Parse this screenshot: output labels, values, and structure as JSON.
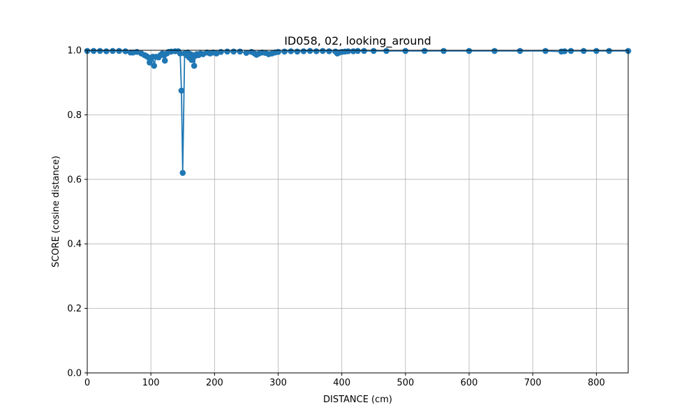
{
  "chart_data": {
    "type": "line",
    "title": "ID058, 02, looking_around",
    "xlabel": "DISTANCE (cm)",
    "ylabel": "SCORE (cosine distance)",
    "xlim": [
      0,
      850
    ],
    "ylim": [
      0,
      1.0
    ],
    "xticks": [
      0,
      100,
      200,
      300,
      400,
      500,
      600,
      700,
      800
    ],
    "yticks": [
      0.0,
      0.2,
      0.4,
      0.6,
      0.8,
      1.0
    ],
    "xtick_labels": [
      "0",
      "100",
      "200",
      "300",
      "400",
      "500",
      "600",
      "700",
      "800"
    ],
    "ytick_labels": [
      "0.0",
      "0.2",
      "0.4",
      "0.6",
      "0.8",
      "1.0"
    ],
    "grid": true,
    "marker": "circle",
    "color": "#1f77b4",
    "x": [
      0,
      10,
      20,
      30,
      40,
      50,
      60,
      68,
      72,
      78,
      85,
      90,
      93,
      96,
      98,
      100,
      103,
      105,
      108,
      112,
      115,
      118,
      120,
      122,
      125,
      128,
      132,
      138,
      143,
      146,
      148,
      150,
      153,
      156,
      158,
      160,
      162,
      164,
      166,
      168,
      170,
      172,
      175,
      178,
      182,
      188,
      193,
      198,
      203,
      210,
      220,
      230,
      240,
      250,
      258,
      263,
      266,
      270,
      275,
      280,
      285,
      290,
      295,
      300,
      310,
      320,
      330,
      340,
      350,
      360,
      370,
      380,
      390,
      393,
      396,
      400,
      405,
      410,
      418,
      425,
      435,
      450,
      470,
      500,
      530,
      560,
      600,
      640,
      680,
      720,
      745,
      750,
      760,
      780,
      800,
      820,
      850
    ],
    "y": [
      0.998,
      0.998,
      0.998,
      0.997,
      0.998,
      0.998,
      0.997,
      0.993,
      0.993,
      0.995,
      0.99,
      0.985,
      0.982,
      0.978,
      0.962,
      0.972,
      0.98,
      0.952,
      0.98,
      0.978,
      0.985,
      0.99,
      0.985,
      0.968,
      0.99,
      0.995,
      0.996,
      0.997,
      0.997,
      0.99,
      0.875,
      0.62,
      0.99,
      0.985,
      0.993,
      0.978,
      0.988,
      0.97,
      0.985,
      0.952,
      0.983,
      0.988,
      0.985,
      0.99,
      0.988,
      0.993,
      0.99,
      0.993,
      0.99,
      0.995,
      0.996,
      0.996,
      0.996,
      0.992,
      0.995,
      0.99,
      0.986,
      0.99,
      0.993,
      0.992,
      0.988,
      0.99,
      0.993,
      0.995,
      0.996,
      0.997,
      0.996,
      0.997,
      0.998,
      0.997,
      0.998,
      0.997,
      0.996,
      0.99,
      0.993,
      0.995,
      0.996,
      0.997,
      0.997,
      0.998,
      0.998,
      0.998,
      0.998,
      0.998,
      0.998,
      0.998,
      0.998,
      0.998,
      0.998,
      0.998,
      0.996,
      0.997,
      0.998,
      0.998,
      0.998,
      0.998,
      0.998
    ]
  }
}
